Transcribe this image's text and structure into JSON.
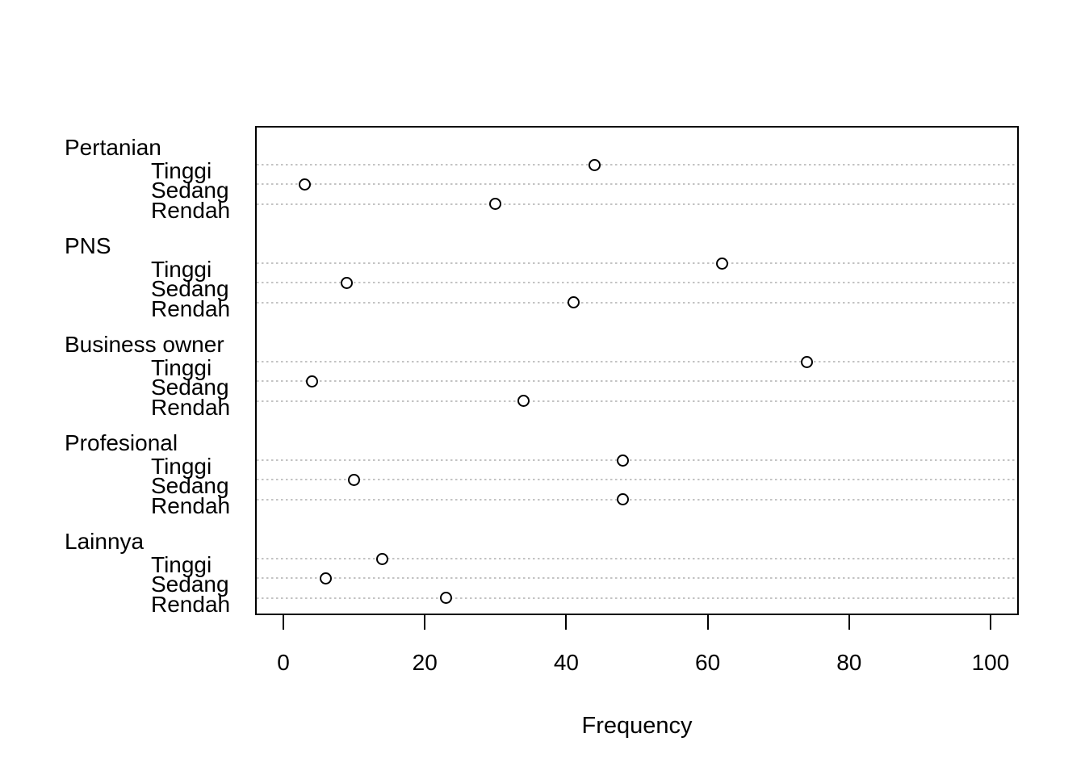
{
  "figure": {
    "background": "#ffffff",
    "text_color": "#000000",
    "grid_color": "#c3c3c3",
    "box_color": "#000000",
    "point_fill": "#ffffff",
    "point_stroke": "#000000"
  },
  "chart_data": {
    "type": "scatter",
    "variant": "grouped-dotchart",
    "title": "",
    "xlabel": "Frequency",
    "ylabel": "",
    "xlim": [
      0,
      100
    ],
    "x_ticks": [
      "0",
      "20",
      "40",
      "60",
      "80",
      "100"
    ],
    "x_tick_values": [
      0,
      20,
      40,
      60,
      80,
      100
    ],
    "grid": "horizontal-dotted",
    "legend": "none",
    "groups": [
      {
        "label": "Pertanian",
        "items": [
          {
            "label": "Tinggi",
            "value": 44
          },
          {
            "label": "Sedang",
            "value": 3
          },
          {
            "label": "Rendah",
            "value": 30
          }
        ]
      },
      {
        "label": "PNS",
        "items": [
          {
            "label": "Tinggi",
            "value": 62
          },
          {
            "label": "Sedang",
            "value": 9
          },
          {
            "label": "Rendah",
            "value": 41
          }
        ]
      },
      {
        "label": "Business owner",
        "items": [
          {
            "label": "Tinggi",
            "value": 74
          },
          {
            "label": "Sedang",
            "value": 4
          },
          {
            "label": "Rendah",
            "value": 34
          }
        ]
      },
      {
        "label": "Profesional",
        "items": [
          {
            "label": "Tinggi",
            "value": 48
          },
          {
            "label": "Sedang",
            "value": 10
          },
          {
            "label": "Rendah",
            "value": 48
          }
        ]
      },
      {
        "label": "Lainnya",
        "items": [
          {
            "label": "Tinggi",
            "value": 14
          },
          {
            "label": "Sedang",
            "value": 6
          },
          {
            "label": "Rendah",
            "value": 23
          }
        ]
      }
    ]
  }
}
